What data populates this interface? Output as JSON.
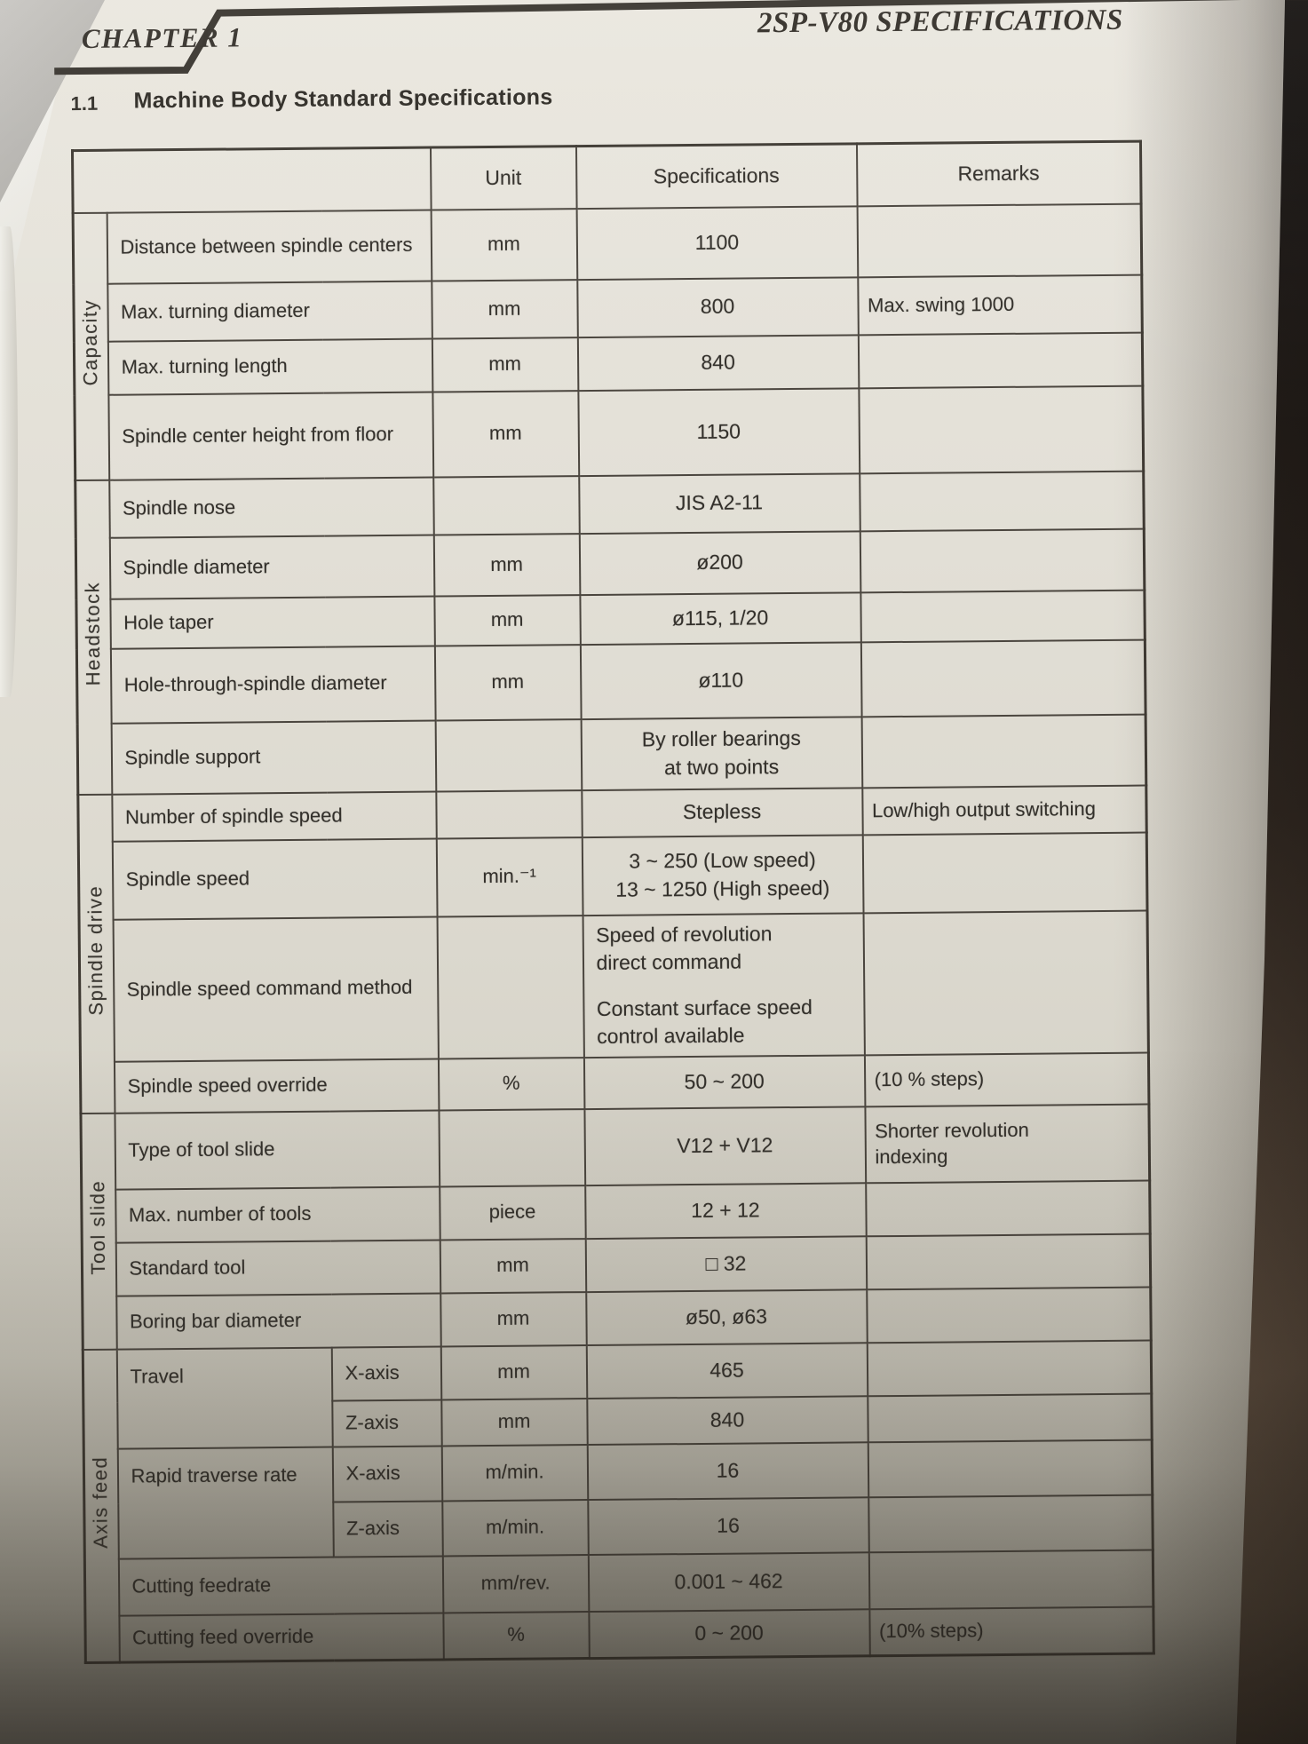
{
  "page": {
    "chapter_label": "CHAPTER 1",
    "title_right": "2SP-V80 SPECIFICATIONS",
    "section_number": "1.1",
    "section_title": "Machine Body Standard Specifications"
  },
  "table": {
    "column_headers": {
      "unit": "Unit",
      "specifications": "Specifications",
      "remarks": "Remarks"
    },
    "sections": [
      {
        "category": "Capacity",
        "rows": [
          {
            "item": "Distance between spindle centers",
            "unit": "mm",
            "spec": [
              "1100"
            ],
            "remarks": []
          },
          {
            "item": "Max. turning diameter",
            "unit": "mm",
            "spec": [
              "800"
            ],
            "remarks": [
              "Max. swing 1000"
            ]
          },
          {
            "item": "Max. turning length",
            "unit": "mm",
            "spec": [
              "840"
            ],
            "remarks": []
          },
          {
            "item": "Spindle center height from floor",
            "unit": "mm",
            "spec": [
              "1150"
            ],
            "remarks": []
          }
        ]
      },
      {
        "category": "Headstock",
        "rows": [
          {
            "item": "Spindle nose",
            "unit": "",
            "spec": [
              "JIS A2-11"
            ],
            "remarks": []
          },
          {
            "item": "Spindle diameter",
            "unit": "mm",
            "spec": [
              "ø200"
            ],
            "remarks": []
          },
          {
            "item": "Hole taper",
            "unit": "mm",
            "spec": [
              "ø115, 1/20"
            ],
            "remarks": []
          },
          {
            "item": "Hole-through-spindle diameter",
            "unit": "mm",
            "spec": [
              "ø110"
            ],
            "remarks": []
          },
          {
            "item": "Spindle support",
            "unit": "",
            "spec": [
              "By roller bearings",
              "at two points"
            ],
            "remarks": []
          }
        ]
      },
      {
        "category": "Spindle drive",
        "rows": [
          {
            "item": "Number of spindle speed",
            "unit": "",
            "spec": [
              "Stepless"
            ],
            "remarks": [
              "Low/high output switching"
            ]
          },
          {
            "item": "Spindle speed",
            "unit": "min.⁻¹",
            "spec": [
              "3 ~ 250 (Low speed)",
              "13 ~ 1250 (High speed)"
            ],
            "remarks": []
          },
          {
            "item": "Spindle speed command method",
            "unit": "",
            "spec": [
              "Speed of revolution",
              "direct command",
              "Constant surface speed",
              "control available"
            ],
            "spec_align": "left",
            "gap_after": 1,
            "remarks": []
          },
          {
            "item": "Spindle speed override",
            "unit": "%",
            "spec": [
              "50 ~ 200"
            ],
            "remarks": [
              "(10 % steps)"
            ]
          }
        ]
      },
      {
        "category": "Tool slide",
        "rows": [
          {
            "item": "Type of tool slide",
            "unit": "",
            "spec": [
              "V12 + V12"
            ],
            "remarks": [
              "Shorter revolution",
              "indexing"
            ]
          },
          {
            "item": "Max. number of tools",
            "unit": "piece",
            "spec": [
              "12 + 12"
            ],
            "remarks": []
          },
          {
            "item": "Standard tool",
            "unit": "mm",
            "spec": [
              "□ 32"
            ],
            "remarks": []
          },
          {
            "item": "Boring bar diameter",
            "unit": "mm",
            "spec": [
              "ø50, ø63"
            ],
            "remarks": []
          }
        ]
      },
      {
        "category": "Axis feed",
        "rows": [
          {
            "item": "Travel",
            "item_rowspan": 2,
            "sub": "X-axis",
            "unit": "mm",
            "spec": [
              "465"
            ],
            "remarks": []
          },
          {
            "sub": "Z-axis",
            "unit": "mm",
            "spec": [
              "840"
            ],
            "remarks": []
          },
          {
            "item": "Rapid traverse rate",
            "item_rowspan": 2,
            "sub": "X-axis",
            "unit": "m/min.",
            "spec": [
              "16"
            ],
            "remarks": []
          },
          {
            "sub": "Z-axis",
            "unit": "m/min.",
            "spec": [
              "16"
            ],
            "remarks": []
          },
          {
            "item": "Cutting feedrate",
            "unit": "mm/rev.",
            "spec": [
              "0.001 ~ 462"
            ],
            "remarks": []
          },
          {
            "item": "Cutting feed override",
            "unit": "%",
            "spec": [
              "0 ~ 200"
            ],
            "remarks": [
              "(10% steps)"
            ]
          }
        ]
      }
    ]
  }
}
